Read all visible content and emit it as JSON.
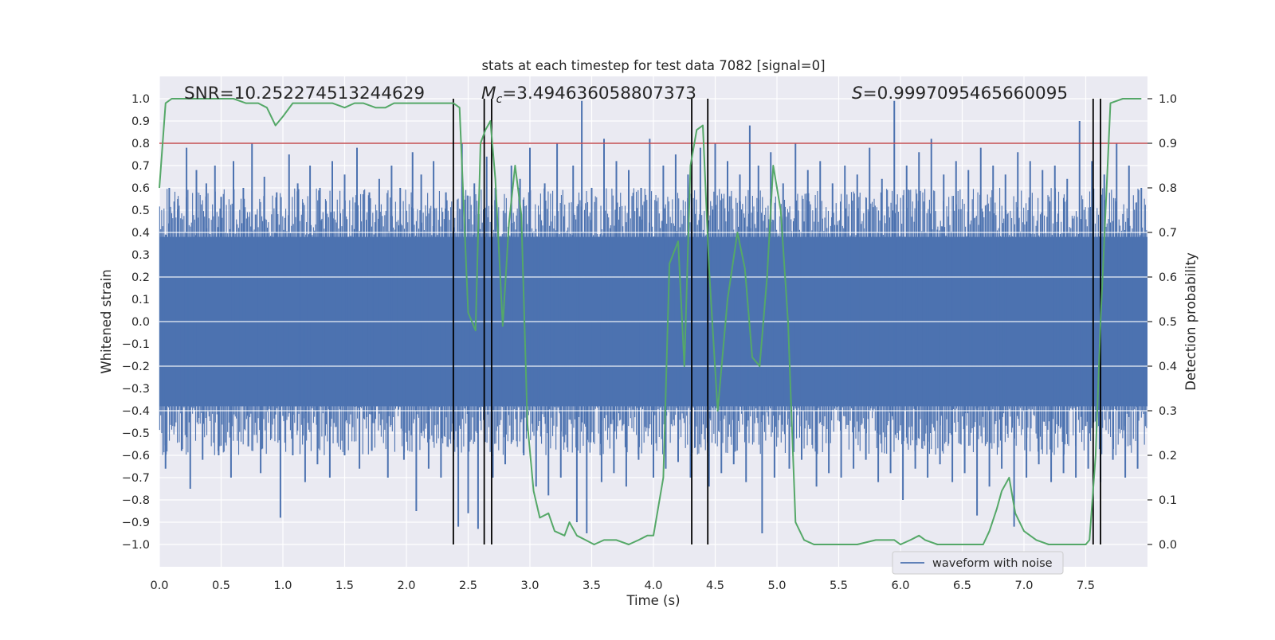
{
  "chart_data": {
    "type": "line",
    "title": "stats at each timestep for test data 7082 [signal=0]",
    "xlabel": "Time (s)",
    "ylabel": "Whitened strain",
    "y2label": "Detection probability",
    "xlim": [
      0.0,
      8.0
    ],
    "ylim": [
      -1.1,
      1.1
    ],
    "y2lim": [
      -0.05,
      1.05
    ],
    "xticks": [
      0.0,
      0.5,
      1.0,
      1.5,
      2.0,
      2.5,
      3.0,
      3.5,
      4.0,
      4.5,
      5.0,
      5.5,
      6.0,
      6.5,
      7.0,
      7.5
    ],
    "yticks": [
      -1.0,
      -0.9,
      -0.8,
      -0.7,
      -0.6,
      -0.5,
      -0.4,
      -0.3,
      -0.2,
      -0.1,
      0.0,
      0.1,
      0.2,
      0.3,
      0.4,
      0.5,
      0.6,
      0.7,
      0.8,
      0.9,
      1.0
    ],
    "y2ticks": [
      0.0,
      0.1,
      0.2,
      0.3,
      0.4,
      0.5,
      0.6,
      0.7,
      0.8,
      0.9,
      1.0
    ],
    "grid": true,
    "annotations": {
      "snr": "SNR=10.252274513244629",
      "mc_symbol": "M",
      "mc_sub": "c",
      "mc_value": "=3.494636058807373",
      "s_symbol": "S",
      "s_value": "=0.9997095465660095"
    },
    "legend": {
      "label": "waveform with noise",
      "placement": "lower-right"
    },
    "waveform": {
      "name": "waveform with noise",
      "color": "#4c72b0",
      "t_start": 0.0,
      "t_end": 8.0,
      "body_amplitude": 0.38,
      "spike_times_up": [
        0.08,
        0.15,
        0.22,
        0.3,
        0.38,
        0.45,
        0.5,
        0.6,
        0.68,
        0.75,
        0.85,
        0.95,
        1.05,
        1.12,
        1.22,
        1.3,
        1.4,
        1.5,
        1.6,
        1.7,
        1.78,
        1.88,
        1.95,
        2.05,
        2.12,
        2.22,
        2.32,
        2.45,
        2.55,
        2.65,
        2.72,
        2.85,
        2.92,
        3.0,
        3.12,
        3.22,
        3.35,
        3.42,
        3.5,
        3.6,
        3.7,
        3.8,
        3.9,
        3.97,
        4.08,
        4.18,
        4.28,
        4.38,
        4.5,
        4.6,
        4.7,
        4.78,
        4.85,
        4.95,
        5.05,
        5.15,
        5.25,
        5.35,
        5.45,
        5.55,
        5.65,
        5.75,
        5.85,
        5.95,
        6.05,
        6.15,
        6.25,
        6.35,
        6.45,
        6.55,
        6.65,
        6.75,
        6.85,
        6.95,
        7.05,
        7.15,
        7.25,
        7.35,
        7.45,
        7.55,
        7.65,
        7.75,
        7.85,
        7.95
      ],
      "spike_values_up": [
        0.6,
        0.55,
        0.78,
        0.68,
        0.62,
        0.7,
        0.56,
        0.72,
        0.6,
        0.8,
        0.65,
        0.58,
        0.75,
        0.62,
        0.7,
        0.6,
        0.72,
        0.66,
        0.78,
        0.58,
        0.64,
        0.7,
        0.6,
        0.76,
        0.66,
        0.72,
        0.58,
        0.8,
        0.62,
        0.74,
        0.6,
        0.7,
        0.64,
        0.78,
        0.62,
        0.8,
        0.7,
        0.99,
        0.6,
        0.82,
        0.72,
        0.68,
        0.6,
        0.82,
        0.7,
        0.75,
        0.66,
        0.78,
        0.8,
        0.72,
        0.66,
        0.88,
        0.7,
        0.76,
        0.62,
        0.8,
        0.68,
        0.72,
        0.62,
        0.7,
        0.66,
        0.78,
        0.64,
        0.99,
        0.7,
        0.76,
        0.82,
        0.66,
        0.72,
        0.68,
        0.78,
        0.7,
        0.66,
        0.76,
        0.72,
        0.68,
        0.7,
        0.64,
        0.9,
        0.72,
        0.66,
        0.8,
        0.7,
        0.6
      ],
      "spike_times_down": [
        0.05,
        0.18,
        0.25,
        0.35,
        0.48,
        0.58,
        0.72,
        0.82,
        0.98,
        1.08,
        1.18,
        1.28,
        1.38,
        1.5,
        1.62,
        1.72,
        1.85,
        1.98,
        2.08,
        2.18,
        2.28,
        2.42,
        2.5,
        2.58,
        2.7,
        2.8,
        2.95,
        3.05,
        3.15,
        3.25,
        3.38,
        3.46,
        3.58,
        3.68,
        3.78,
        3.88,
        4.0,
        4.1,
        4.2,
        4.3,
        4.45,
        4.55,
        4.65,
        4.75,
        4.88,
        4.98,
        5.1,
        5.2,
        5.32,
        5.42,
        5.52,
        5.62,
        5.72,
        5.82,
        5.92,
        6.02,
        6.12,
        6.22,
        6.32,
        6.42,
        6.52,
        6.62,
        6.72,
        6.82,
        6.92,
        7.02,
        7.12,
        7.22,
        7.32,
        7.42,
        7.52,
        7.62,
        7.72,
        7.82,
        7.92
      ],
      "spike_values_down": [
        -0.66,
        -0.58,
        -0.75,
        -0.62,
        -0.6,
        -0.7,
        -0.56,
        -0.68,
        -0.88,
        -0.6,
        -0.72,
        -0.64,
        -0.7,
        -0.6,
        -0.66,
        -0.58,
        -0.7,
        -0.62,
        -0.85,
        -0.66,
        -0.7,
        -0.92,
        -0.86,
        -0.93,
        -0.7,
        -0.64,
        -0.6,
        -0.74,
        -0.78,
        -0.7,
        -0.9,
        -0.95,
        -0.72,
        -0.68,
        -0.74,
        -0.62,
        -0.7,
        -0.66,
        -0.63,
        -0.7,
        -0.74,
        -0.68,
        -0.64,
        -0.72,
        -0.95,
        -0.7,
        -0.66,
        -0.62,
        -0.74,
        -0.68,
        -0.7,
        -0.66,
        -0.62,
        -0.72,
        -0.68,
        -0.8,
        -0.66,
        -0.7,
        -0.64,
        -0.72,
        -0.68,
        -0.87,
        -0.74,
        -0.66,
        -0.92,
        -0.7,
        -0.64,
        -0.72,
        -0.68,
        -0.7,
        -0.66,
        -0.72,
        -0.62,
        -0.7,
        -0.66
      ]
    },
    "detection_probability": {
      "color": "#55a868",
      "t": [
        0.0,
        0.05,
        0.1,
        0.2,
        0.3,
        0.4,
        0.5,
        0.6,
        0.7,
        0.8,
        0.87,
        0.94,
        1.0,
        1.08,
        1.2,
        1.3,
        1.4,
        1.5,
        1.58,
        1.65,
        1.75,
        1.83,
        1.9,
        2.0,
        2.1,
        2.2,
        2.3,
        2.38,
        2.43,
        2.5,
        2.56,
        2.6,
        2.64,
        2.68,
        2.72,
        2.78,
        2.83,
        2.88,
        2.93,
        2.98,
        3.03,
        3.08,
        3.15,
        3.2,
        3.28,
        3.32,
        3.38,
        3.45,
        3.52,
        3.6,
        3.7,
        3.8,
        3.88,
        3.95,
        4.0,
        4.08,
        4.13,
        4.2,
        4.25,
        4.3,
        4.35,
        4.4,
        4.45,
        4.52,
        4.6,
        4.68,
        4.74,
        4.8,
        4.86,
        4.92,
        4.97,
        5.03,
        5.09,
        5.15,
        5.22,
        5.3,
        5.45,
        5.65,
        5.8,
        5.9,
        5.95,
        6.0,
        6.08,
        6.15,
        6.2,
        6.3,
        6.5,
        6.6,
        6.67,
        6.72,
        6.78,
        6.82,
        6.88,
        6.93,
        7.0,
        7.1,
        7.2,
        7.3,
        7.45,
        7.5,
        7.53,
        7.58,
        7.62,
        7.7,
        7.8,
        7.95
      ],
      "values": [
        0.8,
        0.99,
        1.0,
        1.0,
        1.0,
        1.0,
        1.0,
        1.0,
        0.99,
        0.99,
        0.98,
        0.94,
        0.96,
        0.99,
        0.99,
        0.99,
        0.99,
        0.98,
        0.99,
        0.99,
        0.98,
        0.98,
        0.99,
        0.99,
        0.99,
        0.99,
        0.99,
        0.99,
        0.98,
        0.52,
        0.48,
        0.9,
        0.93,
        0.95,
        0.82,
        0.49,
        0.72,
        0.85,
        0.74,
        0.27,
        0.12,
        0.06,
        0.07,
        0.03,
        0.02,
        0.05,
        0.02,
        0.01,
        0.0,
        0.01,
        0.01,
        0.0,
        0.01,
        0.02,
        0.02,
        0.15,
        0.63,
        0.68,
        0.4,
        0.85,
        0.93,
        0.94,
        0.62,
        0.3,
        0.55,
        0.7,
        0.62,
        0.42,
        0.4,
        0.6,
        0.85,
        0.75,
        0.5,
        0.05,
        0.01,
        0.0,
        0.0,
        0.0,
        0.01,
        0.01,
        0.01,
        0.0,
        0.01,
        0.02,
        0.01,
        0.0,
        0.0,
        0.0,
        0.0,
        0.03,
        0.08,
        0.12,
        0.15,
        0.07,
        0.03,
        0.01,
        0.0,
        0.0,
        0.0,
        0.0,
        0.01,
        0.2,
        0.5,
        0.99,
        1.0,
        1.0
      ]
    },
    "threshold_line": {
      "value": 0.9,
      "color": "#c44e52"
    },
    "event_markers": {
      "color": "#000000",
      "times": [
        2.38,
        2.63,
        2.69,
        4.31,
        4.44,
        7.56,
        7.62
      ]
    }
  }
}
